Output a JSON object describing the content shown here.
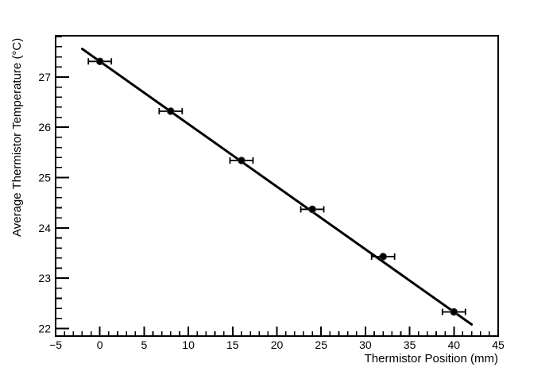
{
  "chart_data": {
    "type": "scatter",
    "title": "",
    "xlabel": "Thermistor Position (mm)",
    "ylabel": "Average Thermistor Temperature (°C)",
    "xlim": [
      -5,
      45
    ],
    "ylim": [
      21.85,
      27.82
    ],
    "x_major_ticks": [
      -5,
      0,
      5,
      10,
      15,
      20,
      25,
      30,
      35,
      40,
      45
    ],
    "x_tick_labels": [
      "−5",
      "0",
      "5",
      "10",
      "15",
      "20",
      "25",
      "30",
      "35",
      "40",
      "45"
    ],
    "x_minor_step": 1,
    "y_major_ticks": [
      22,
      23,
      24,
      25,
      26,
      27
    ],
    "y_tick_labels": [
      "22",
      "23",
      "24",
      "25",
      "26",
      "27"
    ],
    "y_minor_step": 0.2,
    "grid": false,
    "legend": null,
    "series": [
      {
        "name": "measured-points",
        "plot_style": "scatter",
        "marker": "filled-circle",
        "color": "#000000",
        "x": [
          0,
          8,
          16,
          24,
          32,
          40
        ],
        "y": [
          27.31,
          26.32,
          25.34,
          24.37,
          23.43,
          22.33
        ],
        "x_error": [
          1.3,
          1.3,
          1.3,
          1.3,
          1.3,
          1.3
        ]
      },
      {
        "name": "linear-fit",
        "plot_style": "line",
        "color": "#000000",
        "fit": {
          "slope": -0.1245,
          "intercept": 27.31,
          "x_start": -2,
          "x_end": 42
        }
      }
    ],
    "colors": {
      "foreground": "#000000",
      "background": "#ffffff"
    }
  }
}
